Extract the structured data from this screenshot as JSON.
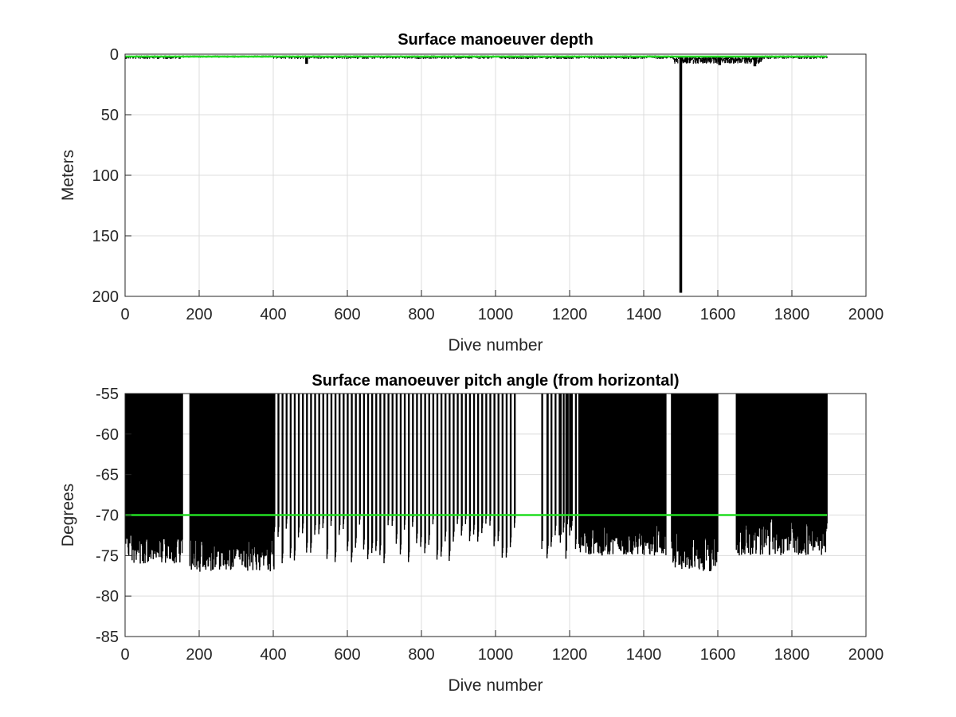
{
  "chart_data": [
    {
      "type": "line",
      "title": "Surface manoeuver depth",
      "xlabel": "Dive number",
      "ylabel": "Meters",
      "xlim": [
        0,
        2000
      ],
      "ylim": [
        0,
        200
      ],
      "y_reversed": true,
      "grid": true,
      "xticks": [
        0,
        200,
        400,
        600,
        800,
        1000,
        1200,
        1400,
        1600,
        1800,
        2000
      ],
      "yticks": [
        0,
        50,
        100,
        150,
        200
      ],
      "xtick_labels": [
        "0",
        "200",
        "400",
        "600",
        "800",
        "1000",
        "1200",
        "1400",
        "1600",
        "1800",
        "2000"
      ],
      "ytick_labels": [
        "0",
        "50",
        "100",
        "150",
        "200"
      ],
      "series": [
        {
          "color": "#000000",
          "style": "dense-vertical-lines",
          "x_range": [
            1,
            1895
          ],
          "baseline": 2,
          "segments": [
            {
              "x": [
                1,
                150
              ],
              "min": 1,
              "max": 4
            },
            {
              "x": [
                150,
                400
              ],
              "min": 1,
              "max": 3
            },
            {
              "x": [
                400,
                1000
              ],
              "min": 1,
              "max": 4
            },
            {
              "x": [
                1000,
                1480
              ],
              "min": 1,
              "max": 4
            },
            {
              "x": [
                1480,
                1720
              ],
              "min": 2,
              "max": 8
            },
            {
              "x": [
                1720,
                1895
              ],
              "min": 1,
              "max": 4
            }
          ],
          "spikes": [
            {
              "x": 490,
              "y": 8
            },
            {
              "x": 1500,
              "y": 197
            },
            {
              "x": 1605,
              "y": 9
            },
            {
              "x": 1700,
              "y": 10
            }
          ]
        },
        {
          "color": "#22dd22",
          "style": "line",
          "x": [
            1,
            1895
          ],
          "y": [
            2,
            2
          ]
        }
      ]
    },
    {
      "type": "line",
      "title": "Surface manoeuver pitch angle (from horizontal)",
      "xlabel": "Dive number",
      "ylabel": "Degrees",
      "xlim": [
        0,
        2000
      ],
      "ylim": [
        -85,
        -55
      ],
      "grid": true,
      "xticks": [
        0,
        200,
        400,
        600,
        800,
        1000,
        1200,
        1400,
        1600,
        1800,
        2000
      ],
      "yticks": [
        -55,
        -60,
        -65,
        -70,
        -75,
        -80,
        -85
      ],
      "xtick_labels": [
        "0",
        "200",
        "400",
        "600",
        "800",
        "1000",
        "1200",
        "1400",
        "1600",
        "1800",
        "2000"
      ],
      "ytick_labels": [
        "-55",
        "-60",
        "-65",
        "-70",
        "-75",
        "-80",
        "-85"
      ],
      "series": [
        {
          "color": "#000000",
          "style": "dense-vertical-lines",
          "top": -55,
          "blocks": [
            {
              "x": [
                2,
                155
              ],
              "bottom_min": -76,
              "bottom_max": -72
            },
            {
              "x": [
                175,
                402
              ],
              "bottom_min": -77,
              "bottom_max": -72
            },
            {
              "x": [
                1225,
                1460
              ],
              "bottom_min": -75,
              "bottom_max": -71
            },
            {
              "x": [
                1475,
                1600
              ],
              "bottom_min": -77,
              "bottom_max": -72
            },
            {
              "x": [
                1650,
                1895
              ],
              "bottom_min": -75,
              "bottom_max": -70
            }
          ],
          "gap_region_dips": {
            "x": [
              402,
              1225
            ],
            "spacing": 11,
            "skip": [
              [
                1060,
                1135
              ]
            ],
            "bottom_min": -76,
            "bottom_max": -71
          }
        },
        {
          "color": "#22dd22",
          "style": "line",
          "x": [
            1,
            1895
          ],
          "y": [
            -70,
            -70
          ]
        }
      ]
    }
  ]
}
